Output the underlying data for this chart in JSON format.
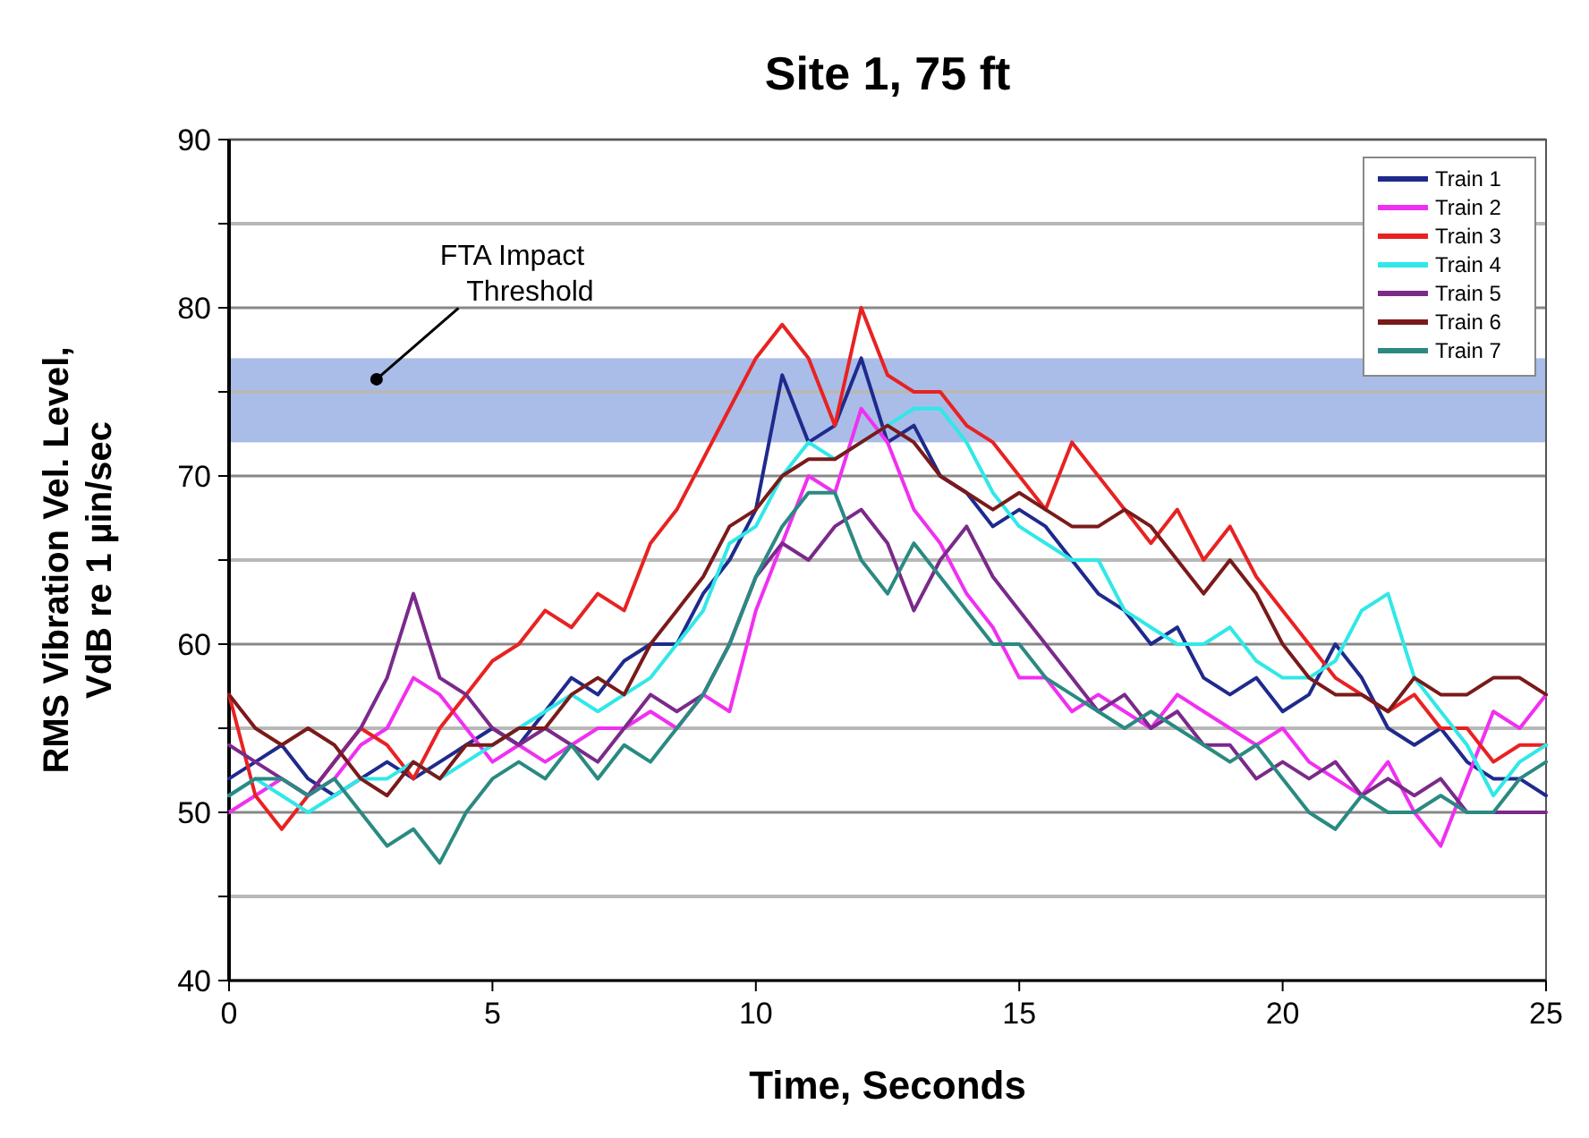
{
  "chart_data": {
    "type": "line",
    "title": "Site 1, 75 ft",
    "xlabel": "Time, Seconds",
    "ylabel": "RMS Vibration Vel. Level, VdB re 1 µin/sec",
    "x": [
      0,
      0.5,
      1,
      1.5,
      2,
      2.5,
      3,
      3.5,
      4,
      4.5,
      5,
      5.5,
      6,
      6.5,
      7,
      7.5,
      8,
      8.5,
      9,
      9.5,
      10,
      10.5,
      11,
      11.5,
      12,
      12.5,
      13,
      13.5,
      14,
      14.5,
      15,
      15.5,
      16,
      16.5,
      17,
      17.5,
      18,
      18.5,
      19,
      19.5,
      20,
      20.5,
      21,
      21.5,
      22,
      22.5,
      23,
      23.5,
      24,
      24.5,
      25
    ],
    "xlim": [
      0,
      25
    ],
    "xticks": [
      0,
      5,
      10,
      15,
      20,
      25
    ],
    "ylim": [
      40,
      90
    ],
    "yticks": [
      40,
      {
        "value": 45,
        "label": null
      },
      50,
      {
        "value": 55,
        "label": null
      },
      60,
      {
        "value": 65,
        "label": null
      },
      70,
      {
        "value": 75,
        "label": null
      },
      80,
      {
        "value": 85,
        "label": null
      },
      90
    ],
    "grid": "y",
    "legend": "top right",
    "marker": "none",
    "line_style": "solid",
    "bands": [
      {
        "axis": "y",
        "from": 72,
        "to": 77,
        "label": "FTA Impact Threshold",
        "color": "#a9bde8"
      }
    ],
    "series": [
      {
        "name": "Train 1",
        "color": "#1f2a8c",
        "values": [
          52,
          53,
          54,
          52,
          51,
          52,
          53,
          52,
          53,
          54,
          55,
          54,
          56,
          58,
          57,
          59,
          60,
          60,
          63,
          65,
          68,
          76,
          72,
          73,
          77,
          72,
          73,
          70,
          69,
          67,
          68,
          67,
          65,
          63,
          62,
          60,
          61,
          58,
          57,
          58,
          56,
          57,
          60,
          58,
          55,
          54,
          55,
          53,
          52,
          52,
          51
        ]
      },
      {
        "name": "Train 2",
        "color": "#f030f0",
        "values": [
          50,
          51,
          52,
          51,
          52,
          54,
          55,
          58,
          57,
          55,
          53,
          54,
          53,
          54,
          55,
          55,
          56,
          55,
          57,
          56,
          62,
          66,
          70,
          69,
          74,
          72,
          68,
          66,
          63,
          61,
          58,
          58,
          56,
          57,
          56,
          55,
          57,
          56,
          55,
          54,
          55,
          53,
          52,
          51,
          53,
          50,
          48,
          52,
          56,
          55,
          57
        ]
      },
      {
        "name": "Train 3",
        "color": "#e82222",
        "values": [
          57,
          51,
          49,
          51,
          53,
          55,
          54,
          52,
          55,
          57,
          59,
          60,
          62,
          61,
          63,
          62,
          66,
          68,
          71,
          74,
          77,
          79,
          77,
          73,
          80,
          76,
          75,
          75,
          73,
          72,
          70,
          68,
          72,
          70,
          68,
          66,
          68,
          65,
          67,
          64,
          62,
          60,
          58,
          57,
          56,
          57,
          55,
          55,
          53,
          54,
          54
        ]
      },
      {
        "name": "Train 4",
        "color": "#30e8e8",
        "values": [
          51,
          52,
          51,
          50,
          51,
          52,
          52,
          53,
          52,
          53,
          54,
          55,
          56,
          57,
          56,
          57,
          58,
          60,
          62,
          66,
          67,
          70,
          72,
          71,
          72,
          73,
          74,
          74,
          72,
          69,
          67,
          66,
          65,
          65,
          62,
          61,
          60,
          60,
          61,
          59,
          58,
          58,
          59,
          62,
          63,
          58,
          56,
          54,
          51,
          53,
          54
        ]
      },
      {
        "name": "Train 5",
        "color": "#7a2a8a",
        "values": [
          54,
          53,
          52,
          51,
          53,
          55,
          58,
          63,
          58,
          57,
          55,
          54,
          55,
          54,
          53,
          55,
          57,
          56,
          57,
          60,
          64,
          66,
          65,
          67,
          68,
          66,
          62,
          65,
          67,
          64,
          62,
          60,
          58,
          56,
          57,
          55,
          56,
          54,
          54,
          52,
          53,
          52,
          53,
          51,
          52,
          51,
          52,
          50,
          50,
          50,
          50
        ]
      },
      {
        "name": "Train 6",
        "color": "#7a1a1a",
        "values": [
          57,
          55,
          54,
          55,
          54,
          52,
          51,
          53,
          52,
          54,
          54,
          55,
          55,
          57,
          58,
          57,
          60,
          62,
          64,
          67,
          68,
          70,
          71,
          71,
          72,
          73,
          72,
          70,
          69,
          68,
          69,
          68,
          67,
          67,
          68,
          67,
          65,
          63,
          65,
          63,
          60,
          58,
          57,
          57,
          56,
          58,
          57,
          57,
          58,
          58,
          57
        ]
      },
      {
        "name": "Train 7",
        "color": "#2a8a82",
        "values": [
          51,
          52,
          52,
          51,
          52,
          50,
          48,
          49,
          47,
          50,
          52,
          53,
          52,
          54,
          52,
          54,
          53,
          55,
          57,
          60,
          64,
          67,
          69,
          69,
          65,
          63,
          66,
          64,
          62,
          60,
          60,
          58,
          57,
          56,
          55,
          56,
          55,
          54,
          53,
          54,
          52,
          50,
          49,
          51,
          50,
          50,
          51,
          50,
          50,
          52,
          53
        ]
      }
    ]
  }
}
